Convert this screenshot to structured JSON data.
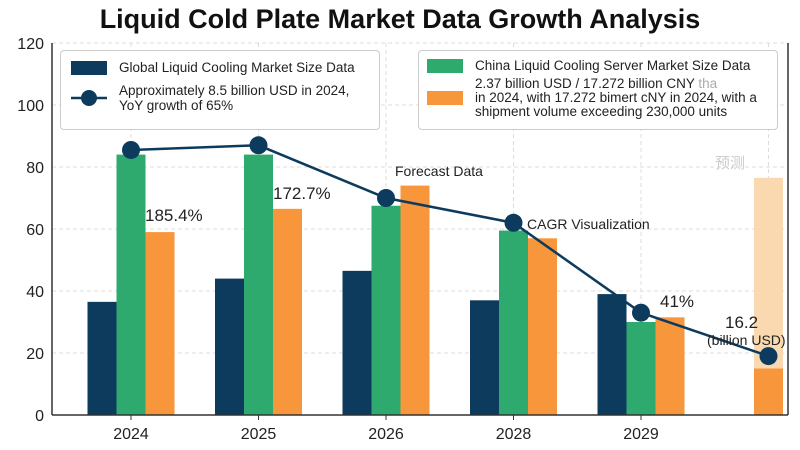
{
  "chart_data": {
    "type": "bar",
    "title": "Liquid Cold Plate Market Data Growth Analysis",
    "categories": [
      "2024",
      "2025",
      "2026",
      "2028",
      "2029",
      ""
    ],
    "ylim": [
      0,
      120
    ],
    "yticks": [
      0,
      20,
      40,
      60,
      80,
      100,
      120
    ],
    "grid": true,
    "series": [
      {
        "name": "Global Liquid Cooling Market Size Data",
        "kind": "bar",
        "color": "#0d3b5e",
        "values": [
          36.5,
          44,
          46.5,
          37,
          39,
          null
        ]
      },
      {
        "name": "China Liquid Cooling Server Market Size Data",
        "kind": "bar",
        "color": "#2eaa6e",
        "values": [
          84,
          84,
          67.5,
          59.5,
          30,
          null
        ]
      },
      {
        "name": "2.37 billion USD / 17.272 billion CNY",
        "kind": "bar",
        "color": "#f7963a",
        "values": [
          59,
          66.5,
          74,
          57,
          31.5,
          15
        ]
      },
      {
        "name": "Approximately 8.5 billion USD in 2024, YoY growth of 65%",
        "kind": "line",
        "color": "#0d3b5e",
        "values": [
          85.5,
          87,
          70,
          62,
          33,
          19
        ]
      }
    ],
    "faded_bar": {
      "category_index": 5,
      "value": 76.5,
      "color": "#fbd9b0",
      "label": "预测"
    },
    "annotations": {
      "a2024": "185.4%",
      "a2025": "172.7%",
      "forecast": "Forecast Data",
      "cagr": "CAGR Visualization",
      "a2029": "41%",
      "final_value": "16.2",
      "final_unit": "(billion USD)"
    },
    "legend_left": {
      "item1": "Global Liquid Cooling Market Size Data",
      "item2_line1": "Approximately 8.5 billion USD in 2024,",
      "item2_line2": "YoY growth of 65%"
    },
    "legend_right": {
      "item1": "China Liquid Cooling Server Market Size Data",
      "item2_line1": "2.37 billion USD / 17.272 billion CNY",
      "item2_faded": "tha",
      "item2_line2": "in 2024, with 17.272 bimert cNY in 2024, with a",
      "item2_line3": "shipment volume exceeding 230,000 units"
    }
  }
}
